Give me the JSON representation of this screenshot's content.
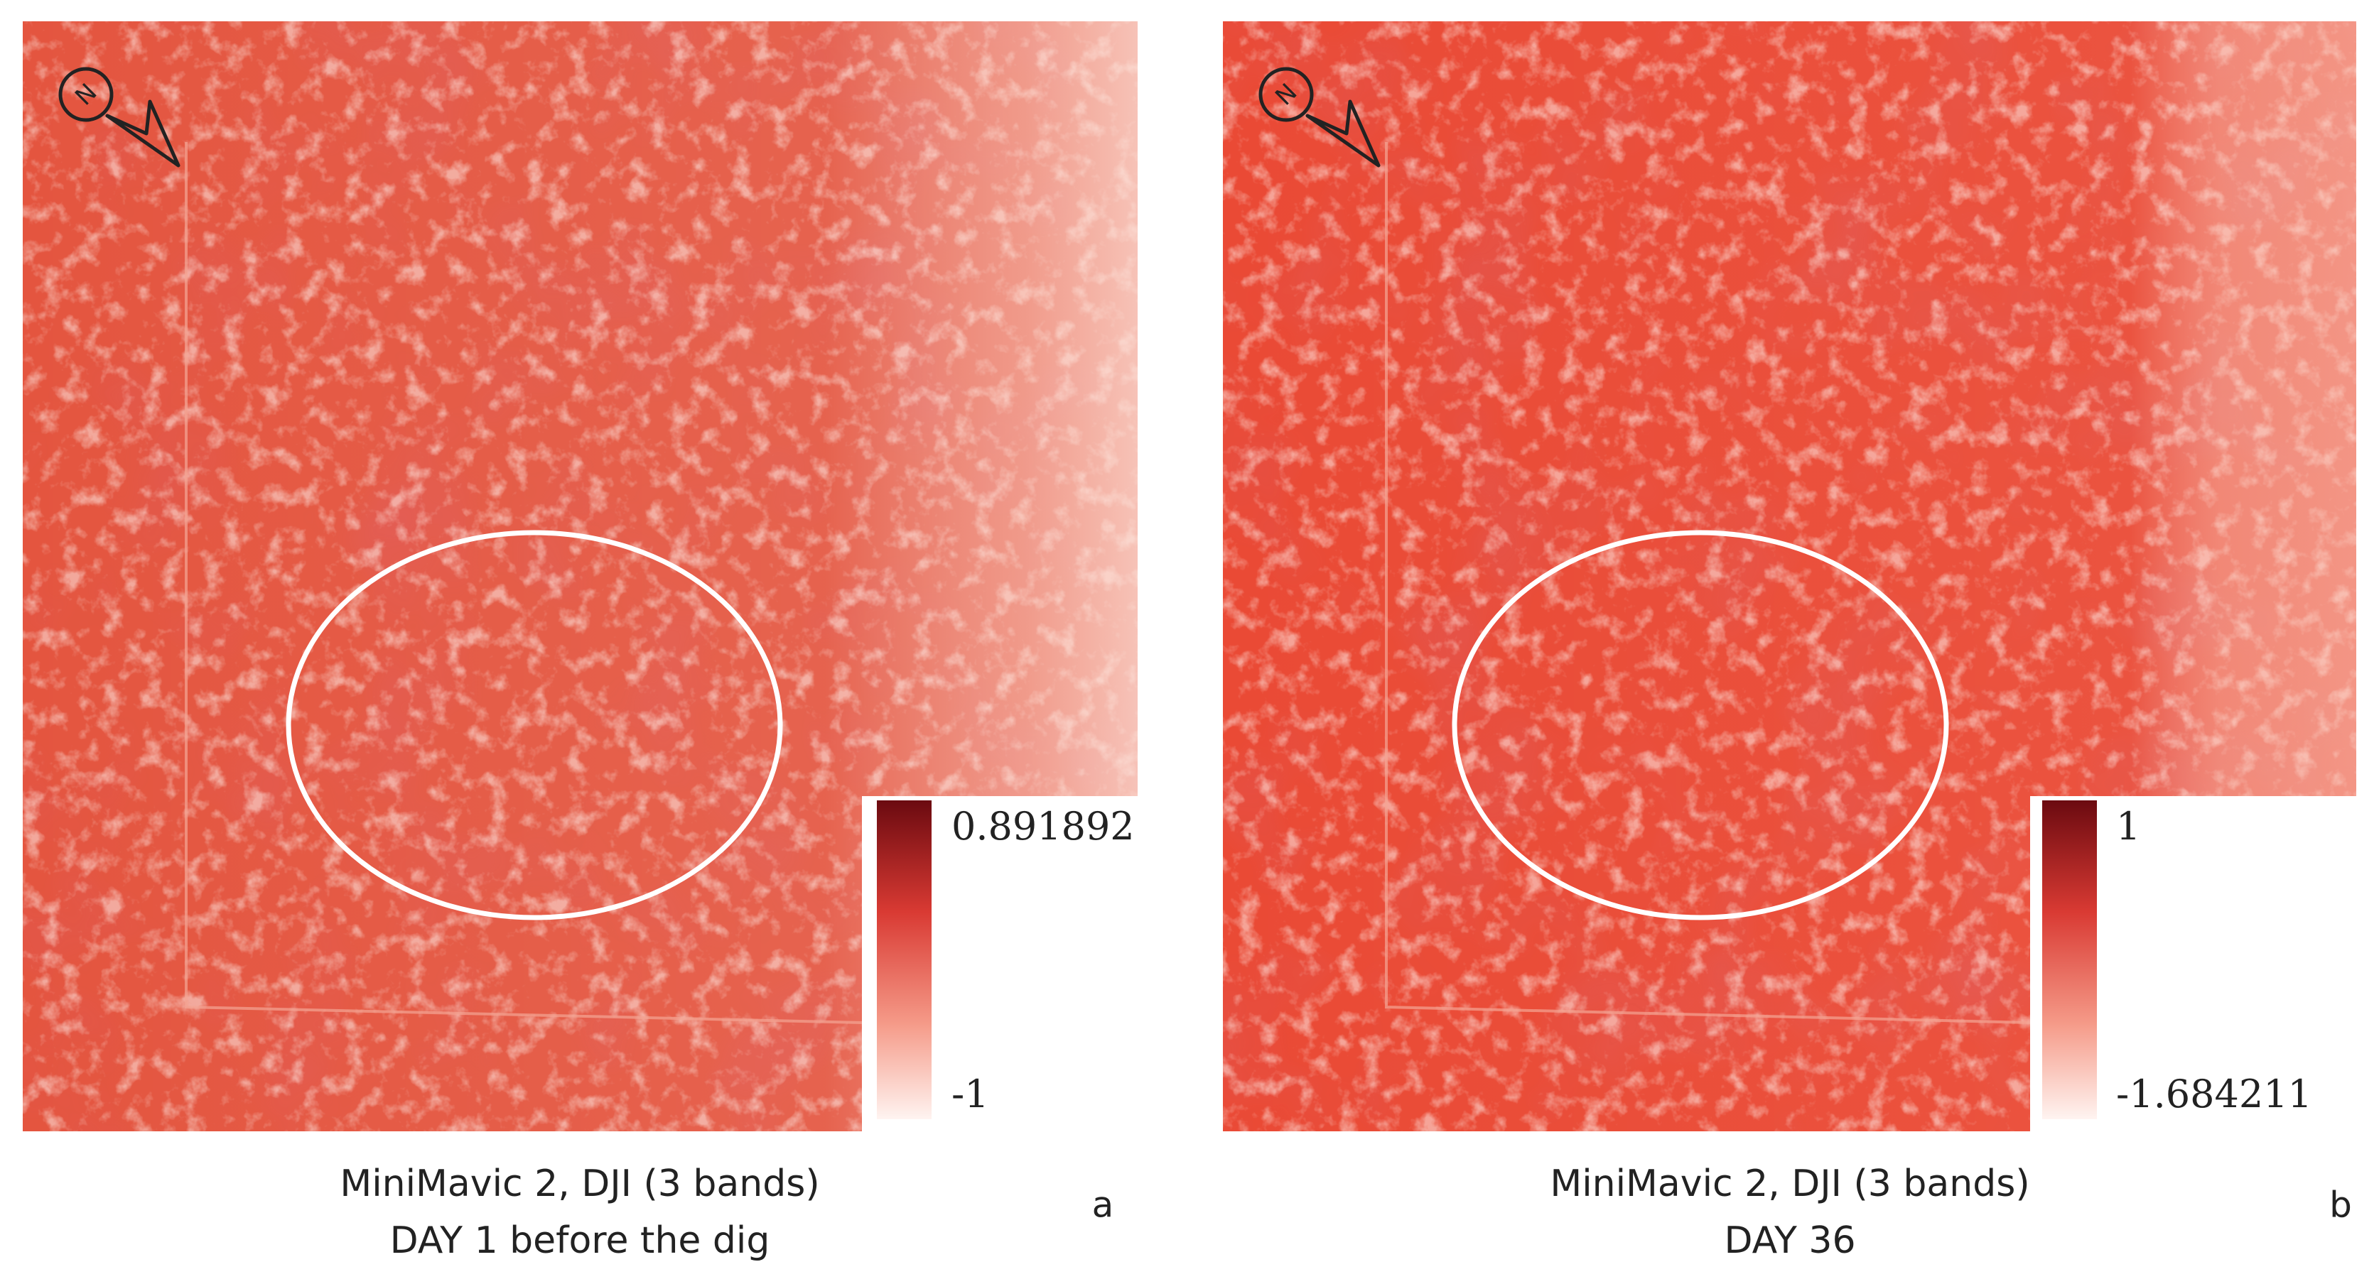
{
  "panels": [
    {
      "north": "N",
      "colorbar": {
        "max": 0.891892,
        "min": -1
      },
      "caption": [
        "MiniMavic 2, DJI (3 bands)",
        "DAY 1 before the dig"
      ],
      "letter": "a"
    },
    {
      "north": "N",
      "colorbar": {
        "max": 1,
        "min": -1.684211
      },
      "caption": [
        "MiniMavic 2, DJI (3 bands)",
        "DAY 36"
      ],
      "letter": "b"
    }
  ]
}
